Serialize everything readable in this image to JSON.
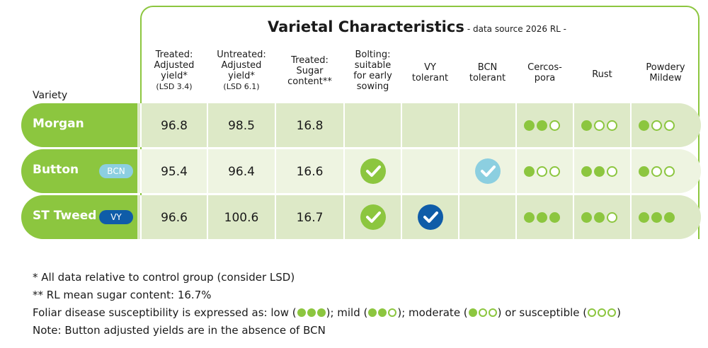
{
  "title": "Varietal Characteristics",
  "subtitle": "- data source 2026 RL -",
  "variety_header": "Variety",
  "columns": [
    {
      "lines": [
        "Treated:",
        "Adjusted",
        "yield*"
      ],
      "small": "(LSD 3.4)"
    },
    {
      "lines": [
        "Untreated:",
        "Adjusted",
        "yield*"
      ],
      "small": "(LSD 6.1)"
    },
    {
      "lines": [
        "Treated:",
        "Sugar",
        "content**"
      ],
      "small": ""
    },
    {
      "lines": [
        "Bolting:",
        "suitable",
        "for early",
        "sowing"
      ],
      "small": ""
    },
    {
      "lines": [
        "VY",
        "tolerant"
      ],
      "small": ""
    },
    {
      "lines": [
        "BCN",
        "tolerant"
      ],
      "small": ""
    },
    {
      "lines": [
        "Cercos-",
        "pora"
      ],
      "small": ""
    },
    {
      "lines": [
        "Rust"
      ],
      "small": ""
    },
    {
      "lines": [
        "Powdery",
        "Mildew"
      ],
      "small": ""
    }
  ],
  "rows": [
    {
      "name": "Morgan",
      "badge": "",
      "treated_yield": "96.8",
      "untreated_yield": "98.5",
      "sugar": "16.8",
      "bolting": false,
      "vy": false,
      "bcn": false,
      "cercospora": 2,
      "rust": 1,
      "mildew": 1
    },
    {
      "name": "Button",
      "badge": "BCN",
      "treated_yield": "95.4",
      "untreated_yield": "96.4",
      "sugar": "16.6",
      "bolting": true,
      "vy": false,
      "bcn": true,
      "cercospora": 1,
      "rust": 2,
      "mildew": 1
    },
    {
      "name": "ST Tweed",
      "badge": "VY",
      "treated_yield": "96.6",
      "untreated_yield": "100.6",
      "sugar": "16.7",
      "bolting": true,
      "vy": true,
      "bcn": false,
      "cercospora": 3,
      "rust": 2,
      "mildew": 3
    }
  ],
  "notes": {
    "n1": "* All data relative to control group (consider LSD)",
    "n2": "** RL mean sugar content: 16.7%",
    "n3_prefix": "Foliar disease susceptibility is expressed as: low (",
    "n3_low": "); mild (",
    "n3_mild": "); moderate (",
    "n3_moderate": ") or susceptible (",
    "n3_end": ")",
    "n4": "Note: Button adjusted yields are in the absence of BCN"
  },
  "colors": {
    "green": "#8cc63f",
    "blue": "#0f5ca8",
    "light_blue": "#8ccfe0"
  }
}
